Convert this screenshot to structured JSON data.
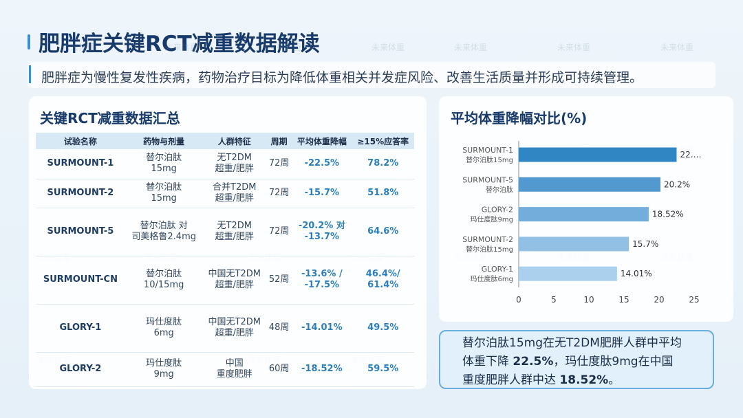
{
  "header": {
    "title": "肥胖症关键RCT减重数据解读",
    "subtitle": "肥胖症为慢性复发性疾病，药物治疗目标为降低体重相关并发症风险、改善生活质量并形成可持续管理。"
  },
  "watermark": "未来体重",
  "table": {
    "title": "关键RCT减重数据汇总",
    "columns": [
      "试验名称",
      "药物与剂量",
      "人群特征",
      "周期",
      "平均体重降幅",
      "≥15%应答率"
    ],
    "rows": [
      [
        "SURMOUNT-1",
        "替尔泊肽\n15mg",
        "无T2DM\n超重/肥胖",
        "72周",
        "-22.5%",
        "78.2%"
      ],
      [
        "SURMOUNT-2",
        "替尔泊肽\n15mg",
        "合并T2DM\n超重/肥胖",
        "72周",
        "-15.7%",
        "51.8%"
      ],
      [
        "SURMOUNT-5",
        "替尔泊肽 对\n司美格鲁2.4mg",
        "无T2DM\n超重/肥胖",
        "72周",
        "-20.2% 对\n-13.7%",
        "64.6%"
      ],
      [
        "SURMOUNT-CN",
        "替尔泊肽\n10/15mg",
        "中国无T2DM\n超重/肥胖",
        "52周",
        "-13.6% /\n-17.5%",
        "46.4%/\n61.4%"
      ],
      [
        "GLORY-1",
        "玛仕度肽\n6mg",
        "中国无T2DM\n超重/肥胖",
        "48周",
        "-14.01%",
        "49.5%"
      ],
      [
        "GLORY-2",
        "玛仕度肽\n9mg",
        "中国\n重度肥胖",
        "60周",
        "-18.52%",
        "59.5%"
      ]
    ]
  },
  "chart_data": {
    "type": "bar",
    "orientation": "horizontal",
    "title": "平均体重降幅对比(%)",
    "categories": [
      "SURMOUNT-1",
      "SURMOUNT-5",
      "GLORY-2",
      "SURMOUNT-2",
      "GLORY-1"
    ],
    "sublabels": [
      "替尔泊肽15mg",
      "替尔泊肽",
      "玛仕度肽9mg",
      "替尔泊肽15mg",
      "玛仕度肽6mg"
    ],
    "values": [
      22.5,
      20.2,
      18.52,
      15.7,
      14.01
    ],
    "value_labels": [
      "22.…",
      "20.2%",
      "18.52%",
      "15.7%",
      "14.01%"
    ],
    "colors": [
      "#2f86c2",
      "#5199cf",
      "#73addb",
      "#92c0e5",
      "#abd0ee"
    ],
    "xlim": [
      0,
      25
    ],
    "xticks": [
      0,
      5,
      10,
      15,
      20,
      25
    ],
    "grid": false
  },
  "note": {
    "parts": [
      "替尔泊肽15mg在无T2DM肥胖人群中平均体重下降 ",
      "22.5%",
      "，玛仕度肽9mg在中国重度肥胖人群中达 ",
      "18.52%",
      "。"
    ]
  }
}
